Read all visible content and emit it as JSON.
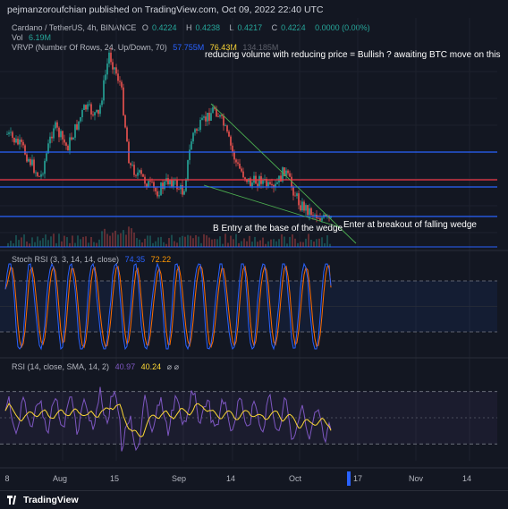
{
  "header": {
    "publisher": "pejmanzoroufchian published on TradingView.com, Oct 09, 2022 22:40 UTC"
  },
  "legend": {
    "symbol": "Cardano / TetherUS, 4h, BINANCE",
    "o_label": "O",
    "o": "0.4224",
    "h_label": "H",
    "h": "0.4238",
    "l_label": "L",
    "l": "0.4217",
    "c_label": "C",
    "c": "0.4224",
    "change": "0.0000 (0.00%)",
    "vol_label": "Vol",
    "vol": "6.19M",
    "vrvp_label": "VRVP (Number Of Rows, 24, Up/Down, 70)",
    "vrvp_v1": "57.755M",
    "vrvp_v2": "76.43M",
    "vrvp_v3": "134.185M"
  },
  "annotations": {
    "top": "reducing volume with reducing price = Bullish ? awaiting BTC move on this",
    "entry_b": "B Entry at the base of the wedge",
    "entry_breakout": "Enter at breakout of falling wedge"
  },
  "stoch": {
    "label": "Stoch RSI (3, 3, 14, 14, close)",
    "k": "74.35",
    "d": "72.22"
  },
  "rsi": {
    "label": "RSI (14, close, SMA, 14, 2)",
    "v1": "40.97",
    "v2": "40.24",
    "icons": "⌀ ⌀"
  },
  "time_axis": {
    "labels": [
      "8",
      "Aug",
      "15",
      "Sep",
      "14",
      "Oct",
      "17",
      "Nov",
      "14"
    ]
  },
  "footer": {
    "brand": "TradingView"
  },
  "colors": {
    "background": "#131722",
    "candle_up": "#26a69a",
    "candle_down": "#ef5350",
    "level_blue": "#2962ff",
    "level_red": "#f23645",
    "wedge": "#4caf50",
    "stoch_k": "#2962ff",
    "stoch_d": "#ff6d00",
    "rsi_line": "#7e57c2",
    "rsi_ma": "#fdd835"
  },
  "chart_data": [
    {
      "type": "candlestick",
      "title": "Cardano / TetherUS, 4h, BINANCE",
      "x_range": [
        "2022-07-08",
        "2022-10-09"
      ],
      "y_range_approx": [
        0.4,
        0.6
      ],
      "series": [
        {
          "name": "close",
          "x": [
            "2022-07-08",
            "2022-07-22",
            "2022-08-01",
            "2022-08-13",
            "2022-08-19",
            "2022-08-29",
            "2022-09-08",
            "2022-09-14",
            "2022-09-23",
            "2022-10-01",
            "2022-10-09"
          ],
          "values": [
            0.46,
            0.5,
            0.5,
            0.58,
            0.46,
            0.45,
            0.5,
            0.49,
            0.44,
            0.43,
            0.4224
          ]
        }
      ],
      "horizontal_levels_blue_count": 3,
      "horizontal_levels_red_count": 1,
      "pattern": "falling wedge"
    },
    {
      "type": "line",
      "title": "Stoch RSI (3, 3, 14, 14, close)",
      "ylim": [
        0,
        100
      ],
      "series": [
        {
          "name": "K",
          "last": 74.35
        },
        {
          "name": "D",
          "last": 72.22
        }
      ]
    },
    {
      "type": "line",
      "title": "RSI (14, close, SMA, 14, 2)",
      "ylim": [
        0,
        100
      ],
      "series": [
        {
          "name": "RSI",
          "last": 40.97
        },
        {
          "name": "RSI-based MA",
          "last": 40.24
        }
      ]
    }
  ]
}
